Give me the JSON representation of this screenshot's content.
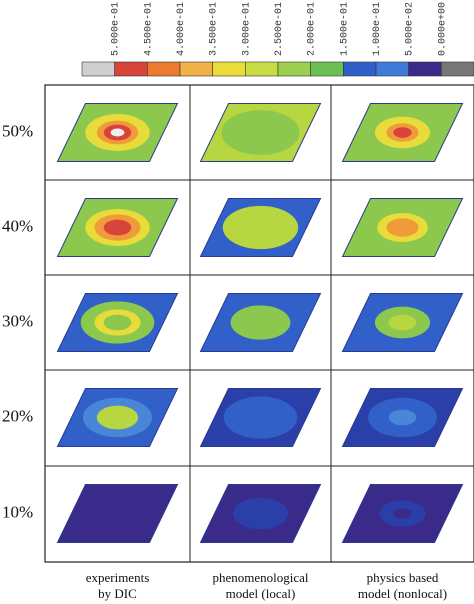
{
  "colorbar": {
    "labels": [
      "5.000e-01",
      "4.500e-01",
      "4.000e-01",
      "3.500e-01",
      "3.000e-01",
      "2.500e-01",
      "2.000e-01",
      "1.500e-01",
      "1.000e-01",
      "5.000e-02",
      "0.000e+00"
    ]
  },
  "row_labels": [
    "50%",
    "40%",
    "30%",
    "20%",
    "10%"
  ],
  "column_labels": [
    [
      "experiments",
      "by DIC"
    ],
    [
      "phenomenological",
      "model (local)"
    ],
    [
      "physics based",
      "model (nonlocal)"
    ]
  ]
}
